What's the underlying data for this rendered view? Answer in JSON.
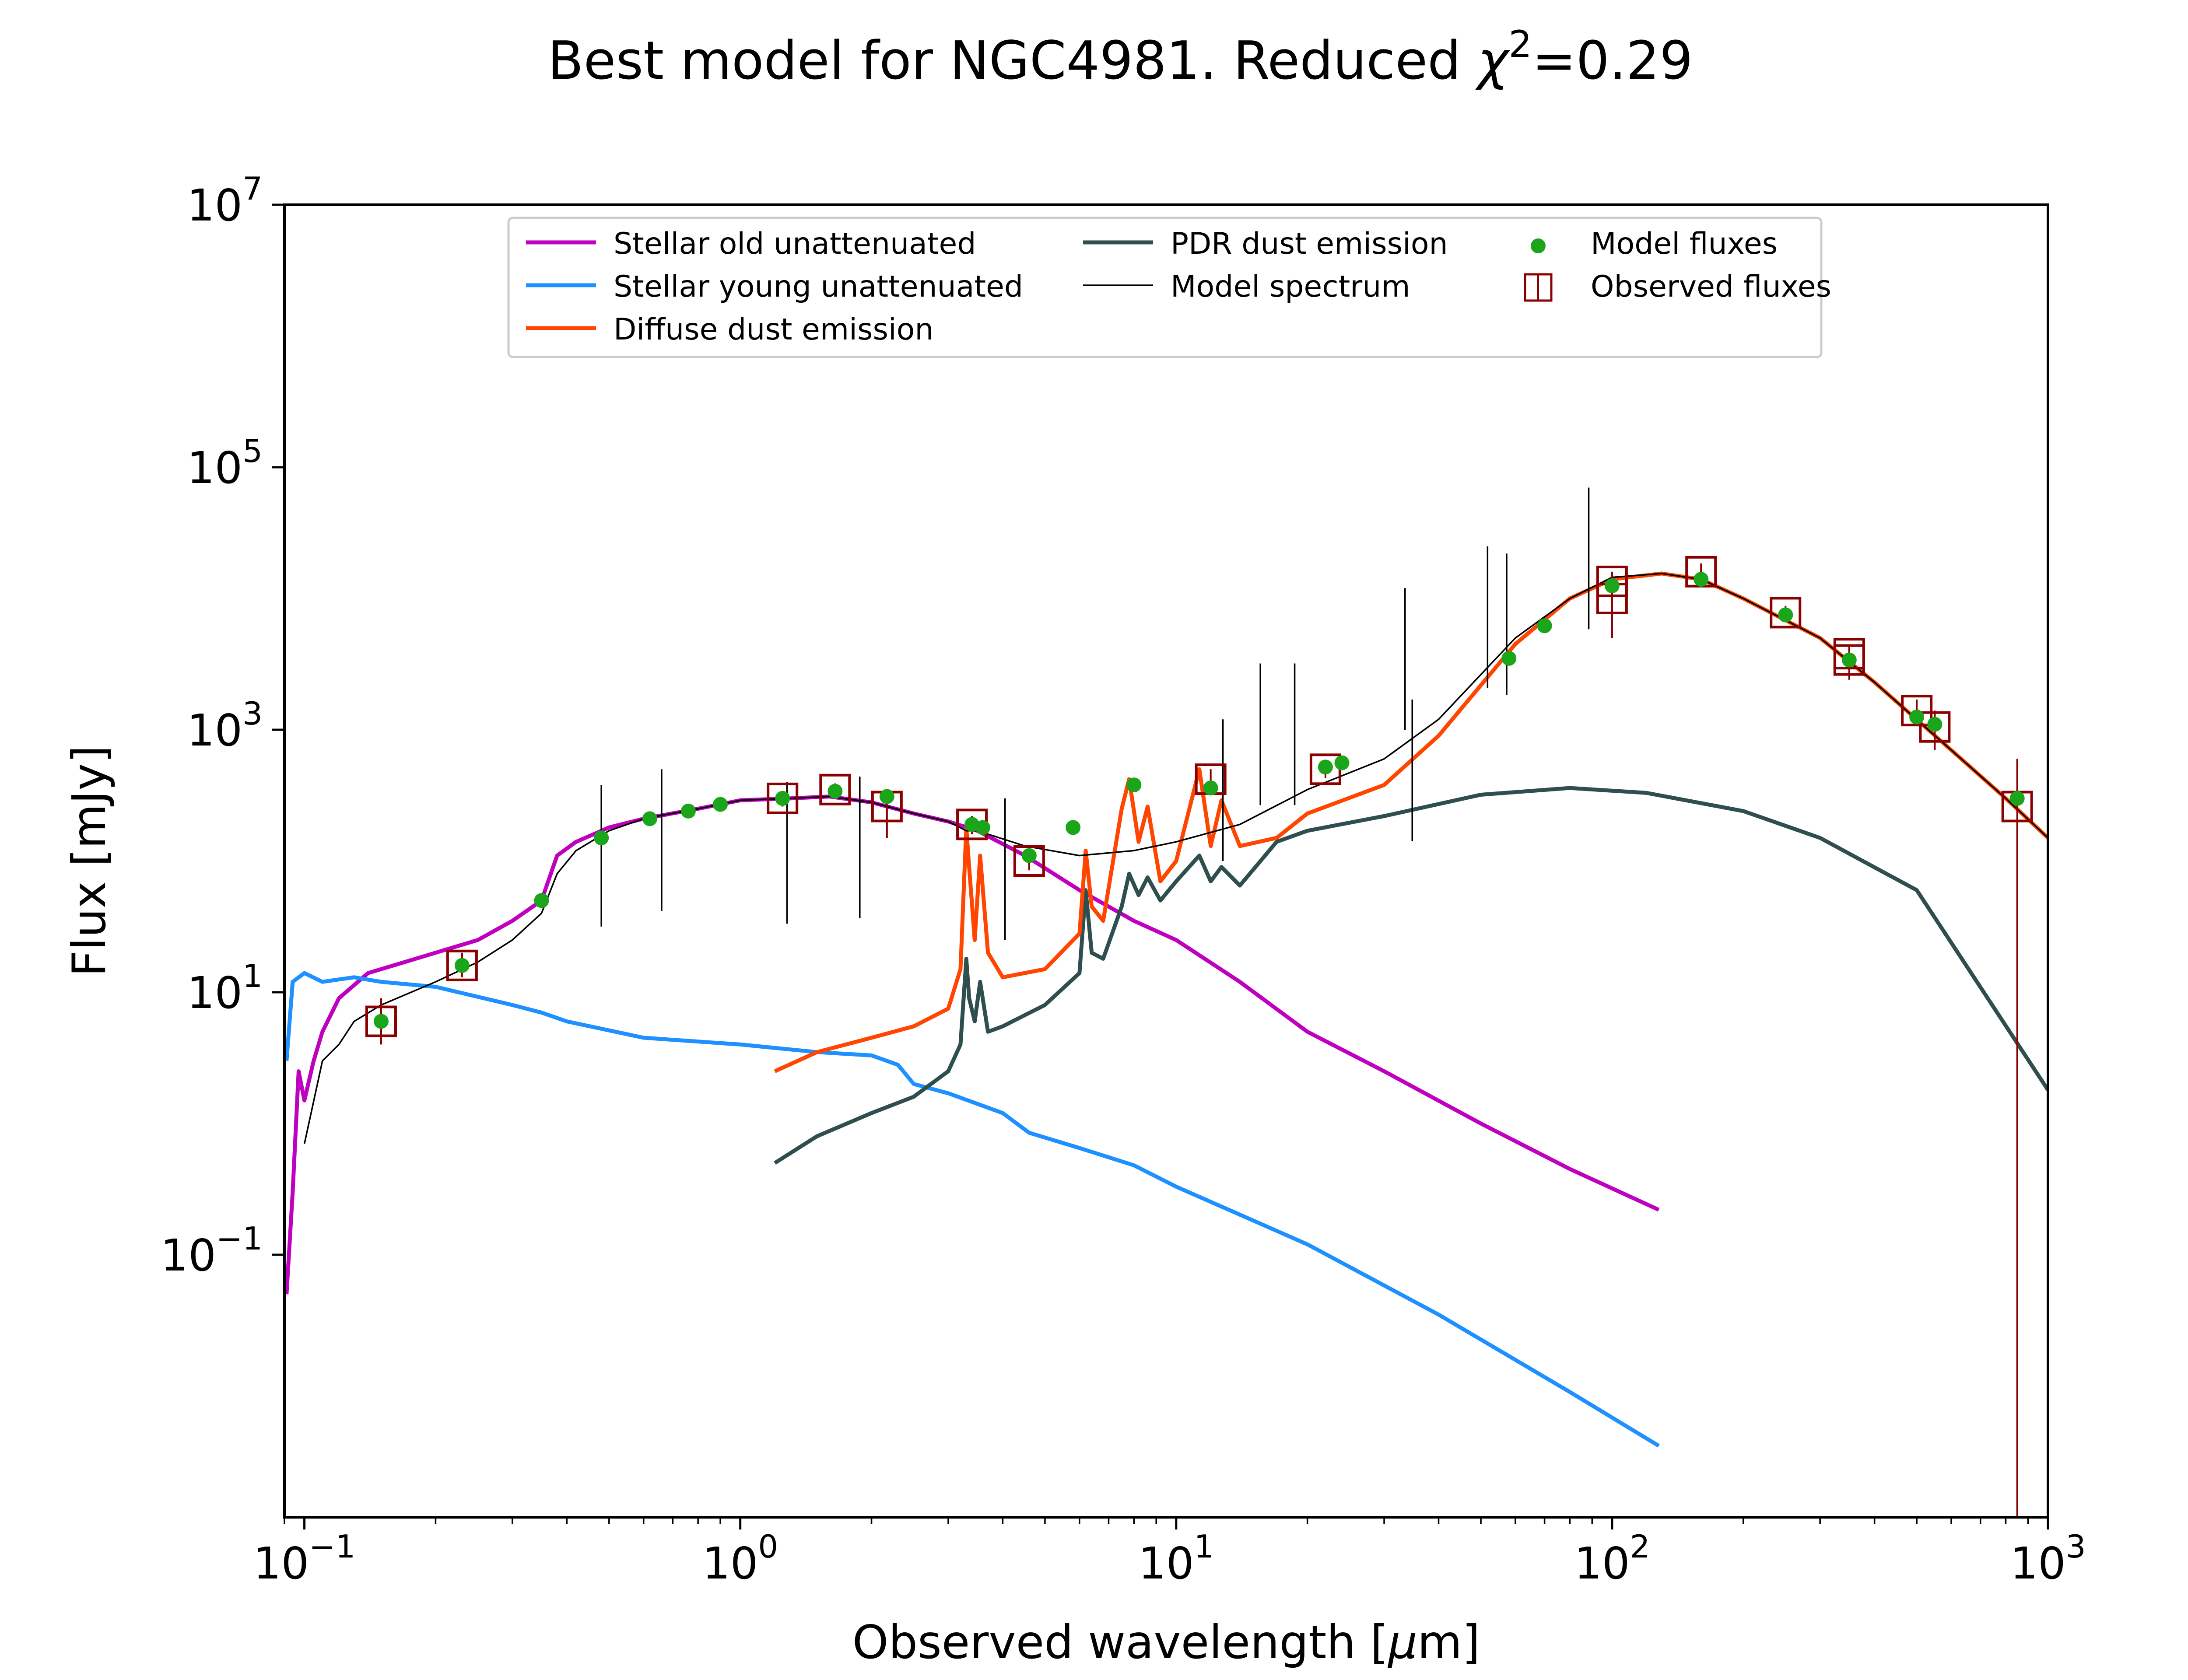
{
  "title": "Best model for NGC4981. Reduced ",
  "title_chi_symbol": "χ",
  "title_chi_exp": "2",
  "title_value": "=0.29",
  "chart_data": {
    "type": "line",
    "xlabel_pre": "Observed wavelength [",
    "xlabel_mu": "μ",
    "xlabel_post": "m]",
    "ylabel": "Flux [mJy]",
    "xscale": "log",
    "yscale": "log",
    "xlim": [
      0.09,
      1000
    ],
    "ylim": [
      0.001,
      10000000
    ],
    "xticks": [
      {
        "value": 0.1,
        "base": "10",
        "exp": "−1"
      },
      {
        "value": 1,
        "base": "10",
        "exp": "0"
      },
      {
        "value": 10,
        "base": "10",
        "exp": "1"
      },
      {
        "value": 100,
        "base": "10",
        "exp": "2"
      },
      {
        "value": 1000,
        "base": "10",
        "exp": "3"
      }
    ],
    "yticks": [
      {
        "value": 0.1,
        "base": "10",
        "exp": "−1"
      },
      {
        "value": 10,
        "base": "10",
        "exp": "1"
      },
      {
        "value": 1000,
        "base": "10",
        "exp": "3"
      },
      {
        "value": 100000,
        "base": "10",
        "exp": "5"
      },
      {
        "value": 10000000,
        "base": "10",
        "exp": "7"
      }
    ],
    "legend_position": "top-center",
    "series": [
      {
        "name": "Stellar old unattenuated",
        "color": "#bf00bf",
        "points": [
          [
            0.091,
            0.05
          ],
          [
            0.094,
            0.3
          ],
          [
            0.097,
            2.5
          ],
          [
            0.1,
            1.5
          ],
          [
            0.105,
            3
          ],
          [
            0.11,
            5
          ],
          [
            0.12,
            9
          ],
          [
            0.14,
            14
          ],
          [
            0.16,
            16
          ],
          [
            0.2,
            20
          ],
          [
            0.25,
            25
          ],
          [
            0.3,
            35
          ],
          [
            0.35,
            50
          ],
          [
            0.38,
            110
          ],
          [
            0.42,
            140
          ],
          [
            0.5,
            180
          ],
          [
            0.6,
            210
          ],
          [
            0.8,
            250
          ],
          [
            1.0,
            290
          ],
          [
            1.3,
            300
          ],
          [
            1.6,
            310
          ],
          [
            2.0,
            280
          ],
          [
            2.5,
            230
          ],
          [
            3.0,
            200
          ],
          [
            3.5,
            170
          ],
          [
            4.5,
            110
          ],
          [
            6,
            60
          ],
          [
            8,
            35
          ],
          [
            10,
            25
          ],
          [
            14,
            12
          ],
          [
            20,
            5
          ],
          [
            30,
            2.5
          ],
          [
            50,
            1.0
          ],
          [
            80,
            0.45
          ],
          [
            128,
            0.22
          ]
        ]
      },
      {
        "name": "Stellar young unattenuated",
        "color": "#1e90ff",
        "points": [
          [
            0.091,
            3
          ],
          [
            0.094,
            12
          ],
          [
            0.1,
            14
          ],
          [
            0.11,
            12
          ],
          [
            0.13,
            13
          ],
          [
            0.15,
            12
          ],
          [
            0.2,
            11
          ],
          [
            0.3,
            8
          ],
          [
            0.35,
            7
          ],
          [
            0.4,
            6
          ],
          [
            0.6,
            4.5
          ],
          [
            1.0,
            4.0
          ],
          [
            1.5,
            3.5
          ],
          [
            2.0,
            3.3
          ],
          [
            2.3,
            2.8
          ],
          [
            2.5,
            2.0
          ],
          [
            3.0,
            1.7
          ],
          [
            4.0,
            1.2
          ],
          [
            4.6,
            0.85
          ],
          [
            6,
            0.65
          ],
          [
            8,
            0.48
          ],
          [
            10,
            0.33
          ],
          [
            20,
            0.12
          ],
          [
            40,
            0.035
          ],
          [
            80,
            0.009
          ],
          [
            128,
            0.0035
          ]
        ]
      },
      {
        "name": "Diffuse dust emission",
        "color": "#ff4500",
        "points": [
          [
            1.2,
            2.5
          ],
          [
            1.5,
            3.5
          ],
          [
            2.0,
            4.5
          ],
          [
            2.5,
            5.5
          ],
          [
            3.0,
            7.5
          ],
          [
            3.2,
            15
          ],
          [
            3.3,
            180
          ],
          [
            3.35,
            90
          ],
          [
            3.45,
            25
          ],
          [
            3.55,
            110
          ],
          [
            3.7,
            20
          ],
          [
            4.0,
            13
          ],
          [
            5.0,
            15
          ],
          [
            6.0,
            28
          ],
          [
            6.2,
            120
          ],
          [
            6.4,
            45
          ],
          [
            6.8,
            35
          ],
          [
            7.5,
            250
          ],
          [
            7.8,
            420
          ],
          [
            8.2,
            140
          ],
          [
            8.6,
            260
          ],
          [
            9.2,
            70
          ],
          [
            10,
            100
          ],
          [
            11.3,
            500
          ],
          [
            12,
            130
          ],
          [
            12.7,
            290
          ],
          [
            14,
            130
          ],
          [
            17,
            150
          ],
          [
            20,
            230
          ],
          [
            30,
            380
          ],
          [
            40,
            900
          ],
          [
            60,
            4500
          ],
          [
            80,
            10000
          ],
          [
            100,
            14000
          ],
          [
            130,
            15500
          ],
          [
            160,
            14000
          ],
          [
            200,
            10000
          ],
          [
            300,
            5000
          ],
          [
            400,
            2300
          ],
          [
            600,
            700
          ],
          [
            800,
            300
          ],
          [
            1000,
            150
          ]
        ]
      },
      {
        "name": "PDR dust emission",
        "color": "#2f4f4f",
        "points": [
          [
            1.2,
            0.5
          ],
          [
            1.5,
            0.8
          ],
          [
            2.0,
            1.2
          ],
          [
            2.5,
            1.6
          ],
          [
            3.0,
            2.5
          ],
          [
            3.2,
            4
          ],
          [
            3.3,
            18
          ],
          [
            3.35,
            9
          ],
          [
            3.45,
            6
          ],
          [
            3.55,
            12
          ],
          [
            3.7,
            5
          ],
          [
            4.0,
            5.5
          ],
          [
            5.0,
            8
          ],
          [
            6.0,
            14
          ],
          [
            6.2,
            60
          ],
          [
            6.4,
            20
          ],
          [
            6.8,
            18
          ],
          [
            7.5,
            45
          ],
          [
            7.8,
            80
          ],
          [
            8.2,
            55
          ],
          [
            8.6,
            75
          ],
          [
            9.2,
            50
          ],
          [
            10,
            70
          ],
          [
            11.3,
            110
          ],
          [
            12,
            70
          ],
          [
            12.7,
            90
          ],
          [
            14,
            65
          ],
          [
            17,
            140
          ],
          [
            20,
            170
          ],
          [
            30,
            220
          ],
          [
            50,
            320
          ],
          [
            80,
            360
          ],
          [
            120,
            330
          ],
          [
            200,
            240
          ],
          [
            300,
            150
          ],
          [
            500,
            60
          ],
          [
            1000,
            1.8
          ]
        ]
      },
      {
        "name": "Model spectrum",
        "color": "#000000",
        "points": [
          [
            0.1,
            0.7
          ],
          [
            0.11,
            3
          ],
          [
            0.12,
            4
          ],
          [
            0.13,
            6
          ],
          [
            0.15,
            8
          ],
          [
            0.2,
            12
          ],
          [
            0.25,
            17
          ],
          [
            0.3,
            25
          ],
          [
            0.35,
            40
          ],
          [
            0.38,
            80
          ],
          [
            0.42,
            120
          ],
          [
            0.5,
            170
          ],
          [
            0.6,
            210
          ],
          [
            0.8,
            250
          ],
          [
            1.0,
            290
          ],
          [
            1.3,
            300
          ],
          [
            1.6,
            310
          ],
          [
            2.0,
            280
          ],
          [
            2.5,
            230
          ],
          [
            3.0,
            200
          ],
          [
            3.3,
            170
          ],
          [
            3.5,
            170
          ],
          [
            4.5,
            130
          ],
          [
            6,
            110
          ],
          [
            8,
            120
          ],
          [
            10,
            140
          ],
          [
            14,
            190
          ],
          [
            20,
            350
          ],
          [
            30,
            600
          ],
          [
            40,
            1200
          ],
          [
            60,
            5000
          ],
          [
            80,
            10000
          ],
          [
            100,
            14500
          ],
          [
            130,
            15500
          ],
          [
            160,
            14000
          ],
          [
            200,
            10000
          ],
          [
            300,
            5000
          ],
          [
            400,
            2300
          ],
          [
            600,
            700
          ],
          [
            800,
            300
          ],
          [
            1000,
            150
          ]
        ]
      }
    ],
    "emission_lines": [
      [
        0.48,
        380
      ],
      [
        0.66,
        500
      ],
      [
        1.28,
        400
      ],
      [
        1.88,
        440
      ],
      [
        4.05,
        300
      ],
      [
        12.8,
        1200
      ],
      [
        15.6,
        3200
      ],
      [
        18.7,
        3200
      ],
      [
        33.5,
        12000
      ],
      [
        34.8,
        1700
      ],
      [
        51.8,
        25000
      ],
      [
        57.3,
        22000
      ],
      [
        88.4,
        70000
      ]
    ],
    "model_fluxes": [
      [
        0.15,
        6
      ],
      [
        0.23,
        16
      ],
      [
        0.35,
        50
      ],
      [
        0.48,
        150
      ],
      [
        0.62,
        210
      ],
      [
        0.76,
        240
      ],
      [
        0.9,
        270
      ],
      [
        1.25,
        300
      ],
      [
        1.65,
        340
      ],
      [
        2.17,
        310
      ],
      [
        3.4,
        190
      ],
      [
        3.6,
        180
      ],
      [
        4.6,
        110
      ],
      [
        5.8,
        180
      ],
      [
        8,
        380
      ],
      [
        12,
        360
      ],
      [
        22,
        520
      ],
      [
        24,
        560
      ],
      [
        58,
        3500
      ],
      [
        70,
        6200
      ],
      [
        100,
        12500
      ],
      [
        160,
        14000
      ],
      [
        250,
        7500
      ],
      [
        350,
        3400
      ],
      [
        500,
        1250
      ],
      [
        550,
        1100
      ],
      [
        850,
        300
      ]
    ],
    "observed_fluxes": [
      {
        "x": 0.15,
        "y": 6,
        "err_lo": 4,
        "err_hi": 9
      },
      {
        "x": 0.23,
        "y": 16,
        "err_lo": 13,
        "err_hi": 20
      },
      {
        "x": 1.25,
        "y": 300,
        "err_lo": 260,
        "err_hi": 340
      },
      {
        "x": 1.65,
        "y": 350,
        "err_lo": 310,
        "err_hi": 390
      },
      {
        "x": 2.17,
        "y": 260,
        "err_lo": 150,
        "err_hi": 330
      },
      {
        "x": 3.4,
        "y": 190,
        "err_lo": 160,
        "err_hi": 220
      },
      {
        "x": 4.6,
        "y": 100,
        "err_lo": 85,
        "err_hi": 115
      },
      {
        "x": 12,
        "y": 420,
        "err_lo": 330,
        "err_hi": 500
      },
      {
        "x": 22,
        "y": 500,
        "err_lo": 430,
        "err_hi": 580
      },
      {
        "x": 100,
        "y": 13500,
        "err_lo": 10500,
        "err_hi": 16000
      },
      {
        "x": 100,
        "y": 10000,
        "err_lo": 5000,
        "err_hi": 15000
      },
      {
        "x": 160,
        "y": 16000,
        "err_lo": 14000,
        "err_hi": 18500
      },
      {
        "x": 250,
        "y": 7800,
        "err_lo": 6800,
        "err_hi": 8800
      },
      {
        "x": 350,
        "y": 3800,
        "err_lo": 3200,
        "err_hi": 4400
      },
      {
        "x": 350,
        "y": 3400,
        "err_lo": 2400,
        "err_hi": 4400
      },
      {
        "x": 500,
        "y": 1400,
        "err_lo": 1100,
        "err_hi": 1700
      },
      {
        "x": 550,
        "y": 1050,
        "err_lo": 700,
        "err_hi": 1400
      },
      {
        "x": 850,
        "y": 260,
        "err_lo": 0.001,
        "err_hi": 600
      }
    ],
    "legend": [
      {
        "label": "Stellar old unattenuated",
        "kind": "line",
        "color": "#bf00bf"
      },
      {
        "label": "Stellar young unattenuated",
        "kind": "line",
        "color": "#1e90ff"
      },
      {
        "label": "Diffuse dust emission",
        "kind": "line",
        "color": "#ff4500"
      },
      {
        "label": "PDR dust emission",
        "kind": "line",
        "color": "#2f4f4f"
      },
      {
        "label": "Model spectrum",
        "kind": "thinline",
        "color": "#000000"
      },
      {
        "label": "Model fluxes",
        "kind": "dot",
        "color": "#1aa51a"
      },
      {
        "label": "Observed fluxes",
        "kind": "square",
        "color": "#8b0000"
      }
    ]
  }
}
